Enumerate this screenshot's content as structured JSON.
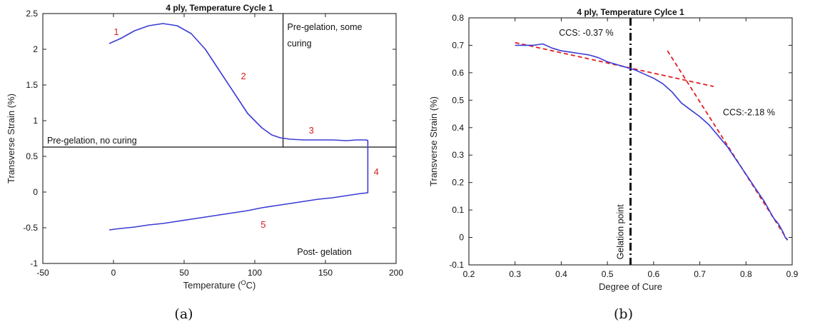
{
  "chart_data": [
    {
      "type": "line",
      "panel_caption": "(a)",
      "title": "4 ply, Temperature Cycle 1",
      "xlabel": "Temperature (",
      "xlabel_sup": "O",
      "xlabel_unit": "C)",
      "ylabel": "Transverse Strain (%)",
      "xlim": [
        -50,
        200
      ],
      "ylim": [
        -1,
        2.5
      ],
      "xticks": [
        -50,
        0,
        50,
        100,
        150,
        200
      ],
      "yticks": [
        -1,
        -0.5,
        0,
        0.5,
        1,
        1.5,
        2,
        2.5
      ],
      "series_color": "#3b3bd4",
      "series": [
        {
          "x": [
            -3,
            5,
            15,
            25,
            35,
            45,
            55,
            65,
            75,
            85,
            95,
            105,
            112,
            118,
            125,
            135,
            145,
            155,
            165,
            172,
            176,
            179,
            180,
            180,
            180,
            180,
            175,
            165,
            155,
            145,
            135,
            125,
            115,
            105,
            95,
            85,
            75,
            65,
            55,
            45,
            35,
            25,
            15,
            5,
            -3
          ],
          "y": [
            2.08,
            2.15,
            2.26,
            2.33,
            2.36,
            2.33,
            2.22,
            2.0,
            1.7,
            1.4,
            1.1,
            0.9,
            0.8,
            0.76,
            0.74,
            0.73,
            0.73,
            0.73,
            0.72,
            0.73,
            0.73,
            0.73,
            0.72,
            0.35,
            0.0,
            -0.01,
            -0.02,
            -0.05,
            -0.08,
            -0.1,
            -0.13,
            -0.16,
            -0.19,
            -0.22,
            -0.26,
            -0.29,
            -0.32,
            -0.35,
            -0.38,
            -0.41,
            -0.44,
            -0.46,
            -0.49,
            -0.51,
            -0.53
          ]
        }
      ],
      "divider_h_y": 0.63,
      "divider_v_x": 120,
      "region_labels": [
        {
          "text": "Pre-gelation, no curing",
          "x": -47,
          "y": 0.68
        },
        {
          "text": "Pre-gelation, some",
          "x": 123,
          "y": 2.27
        },
        {
          "text": "curing",
          "x": 123,
          "y": 2.04
        },
        {
          "text": "Post- gelation",
          "x": 130,
          "y": -0.88
        }
      ],
      "stage_labels": [
        {
          "text": "1",
          "x": 2,
          "y": 2.2
        },
        {
          "text": "2",
          "x": 92,
          "y": 1.58
        },
        {
          "text": "3",
          "x": 140,
          "y": 0.82
        },
        {
          "text": "4",
          "x": 186,
          "y": 0.24
        },
        {
          "text": "5",
          "x": 106,
          "y": -0.5
        }
      ]
    },
    {
      "type": "line",
      "panel_caption": "(b)",
      "title": "4 ply, Temperature Cylce 1",
      "xlabel": "Degree of Cure",
      "ylabel": "Transverse Strain (%)",
      "xlim": [
        0.2,
        0.9
      ],
      "ylim": [
        -0.1,
        0.8
      ],
      "xticks": [
        0.2,
        0.3,
        0.4,
        0.5,
        0.6,
        0.7,
        0.8,
        0.9
      ],
      "yticks": [
        -0.1,
        0,
        0.1,
        0.2,
        0.3,
        0.4,
        0.5,
        0.6,
        0.7,
        0.8
      ],
      "series_color": "#3b3bd4",
      "fit_color": "#e02020",
      "series": [
        {
          "x": [
            0.3,
            0.32,
            0.34,
            0.36,
            0.38,
            0.4,
            0.42,
            0.44,
            0.46,
            0.48,
            0.5,
            0.52,
            0.54,
            0.56,
            0.58,
            0.6,
            0.62,
            0.64,
            0.66,
            0.68,
            0.7,
            0.72,
            0.74,
            0.76,
            0.78,
            0.8,
            0.82,
            0.84,
            0.86,
            0.87,
            0.88,
            0.885,
            0.89
          ],
          "y": [
            0.7,
            0.7,
            0.7,
            0.705,
            0.69,
            0.68,
            0.675,
            0.67,
            0.665,
            0.655,
            0.64,
            0.63,
            0.62,
            0.61,
            0.595,
            0.58,
            0.56,
            0.53,
            0.49,
            0.465,
            0.44,
            0.41,
            0.37,
            0.33,
            0.28,
            0.23,
            0.18,
            0.13,
            0.07,
            0.05,
            0.02,
            0.0,
            -0.01
          ]
        }
      ],
      "fit_lines": [
        {
          "x": [
            0.3,
            0.73
          ],
          "y": [
            0.71,
            0.55
          ]
        },
        {
          "x": [
            0.63,
            0.89
          ],
          "y": [
            0.68,
            -0.01
          ]
        }
      ],
      "gel_line_x": 0.55,
      "gel_label": "Gelation point",
      "annotations": [
        {
          "text": "CCS: -0.37 %",
          "x": 0.395,
          "y": 0.735
        },
        {
          "text": "CCS:-2.18 %",
          "x": 0.75,
          "y": 0.445
        }
      ]
    }
  ]
}
